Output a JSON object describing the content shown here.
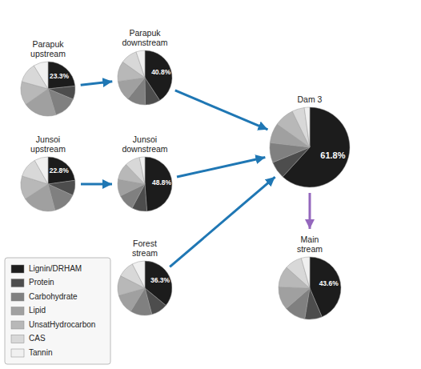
{
  "chart_data": [
    {
      "type": "pie",
      "title": "Parapuk\nupstream",
      "categories": [
        "Lignin/DRHAM",
        "Protein",
        "Carbohydrate",
        "Lipid",
        "UnsatHydrocarbon",
        "CAS",
        "Tannin"
      ],
      "values": [
        23.3,
        8,
        14,
        20,
        14,
        12,
        8.7
      ],
      "value_labels": [
        "23.3%",
        null,
        null,
        null,
        null,
        null,
        null
      ],
      "colors": [
        "#1c1c1c",
        "#4d4d4d",
        "#808080",
        "#a0a0a0",
        "#b8b8b8",
        "#d8d8d8",
        "#f0f0f0"
      ],
      "legend": "lower left"
    },
    {
      "type": "pie",
      "title": "Parapuk\ndownstream",
      "categories": [
        "Lignin/DRHAM",
        "Protein",
        "Carbohydrate",
        "Lipid",
        "UnsatHydrocarbon",
        "CAS",
        "Tannin"
      ],
      "values": [
        40.8,
        9,
        11,
        12,
        12,
        10,
        5.2
      ],
      "value_labels": [
        "40.8%",
        null,
        null,
        null,
        null,
        null,
        null
      ],
      "colors": [
        "#1c1c1c",
        "#4d4d4d",
        "#808080",
        "#a0a0a0",
        "#b8b8b8",
        "#d8d8d8",
        "#f0f0f0"
      ]
    },
    {
      "type": "pie",
      "title": "Junsoi\nupstream",
      "categories": [
        "Lignin/DRHAM",
        "Protein",
        "Carbohydrate",
        "Lipid",
        "UnsatHydrocarbon",
        "CAS",
        "Tannin"
      ],
      "values": [
        22.8,
        9,
        14,
        20,
        14,
        12,
        8.2
      ],
      "value_labels": [
        "22.8%",
        null,
        null,
        null,
        null,
        null,
        null
      ],
      "colors": [
        "#1c1c1c",
        "#4d4d4d",
        "#808080",
        "#a0a0a0",
        "#b8b8b8",
        "#d8d8d8",
        "#f0f0f0"
      ]
    },
    {
      "type": "pie",
      "title": "Junsoi\ndownstream",
      "categories": [
        "Lignin/DRHAM",
        "Protein",
        "Carbohydrate",
        "Lipid",
        "UnsatHydrocarbon",
        "CAS",
        "Tannin"
      ],
      "values": [
        48.8,
        9,
        10,
        10,
        10,
        9,
        3.2
      ],
      "value_labels": [
        "48.8%",
        null,
        null,
        null,
        null,
        null,
        null
      ],
      "colors": [
        "#1c1c1c",
        "#4d4d4d",
        "#808080",
        "#a0a0a0",
        "#b8b8b8",
        "#d8d8d8",
        "#f0f0f0"
      ]
    },
    {
      "type": "pie",
      "title": "Forest\nstream",
      "categories": [
        "Lignin/DRHAM",
        "Protein",
        "Carbohydrate",
        "Lipid",
        "UnsatHydrocarbon",
        "CAS",
        "Tannin"
      ],
      "values": [
        36.3,
        10,
        13,
        12,
        12,
        10,
        7.7
      ],
      "value_labels": [
        "36.3%",
        null,
        null,
        null,
        null,
        null,
        null
      ],
      "colors": [
        "#1c1c1c",
        "#4d4d4d",
        "#808080",
        "#a0a0a0",
        "#b8b8b8",
        "#d8d8d8",
        "#f0f0f0"
      ]
    },
    {
      "type": "pie",
      "title": "Dam 3",
      "categories": [
        "Lignin/DRHAM",
        "Protein",
        "Carbohydrate",
        "Lipid",
        "UnsatHydrocarbon",
        "CAS",
        "Tannin"
      ],
      "values": [
        61.8,
        7,
        8,
        8,
        8,
        5,
        2.2
      ],
      "value_labels": [
        "61.8%",
        null,
        null,
        null,
        null,
        null,
        null
      ],
      "colors": [
        "#1c1c1c",
        "#4d4d4d",
        "#808080",
        "#a0a0a0",
        "#b8b8b8",
        "#d8d8d8",
        "#f0f0f0"
      ]
    },
    {
      "type": "pie",
      "title": "Main\nstream",
      "categories": [
        "Lignin/DRHAM",
        "Protein",
        "Carbohydrate",
        "Lipid",
        "UnsatHydrocarbon",
        "CAS",
        "Tannin"
      ],
      "values": [
        43.6,
        9,
        11,
        12,
        11,
        9,
        4.4
      ],
      "value_labels": [
        "43.6%",
        null,
        null,
        null,
        null,
        null,
        null
      ],
      "colors": [
        "#1c1c1c",
        "#4d4d4d",
        "#808080",
        "#a0a0a0",
        "#b8b8b8",
        "#d8d8d8",
        "#f0f0f0"
      ]
    }
  ]
}
